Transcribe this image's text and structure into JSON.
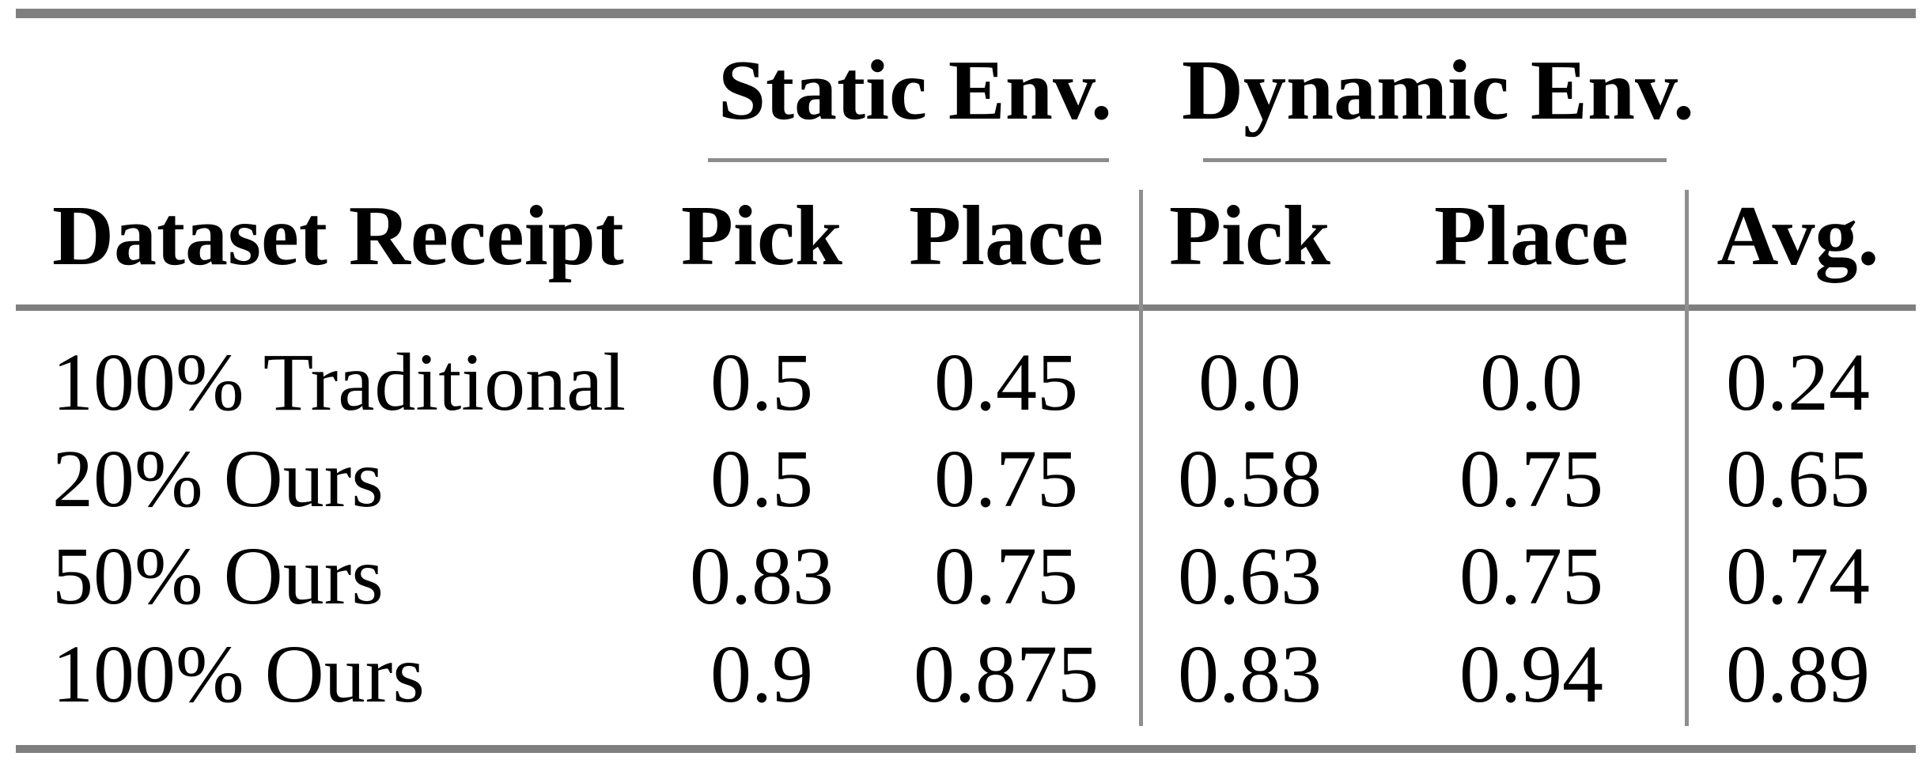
{
  "table": {
    "header": {
      "group_static": "Static Env.",
      "group_dynamic": "Dynamic Env.",
      "col_dataset": "Dataset Receipt",
      "col_pick_static": "Pick",
      "col_place_static": "Place",
      "col_pick_dynamic": "Pick",
      "col_place_dynamic": "Place",
      "col_avg": "Avg."
    },
    "rows": [
      {
        "dataset": "100% Traditional",
        "static_pick": "0.5",
        "static_place": "0.45",
        "dynamic_pick": "0.0",
        "dynamic_place": "0.0",
        "avg": "0.24"
      },
      {
        "dataset": "20% Ours",
        "static_pick": "0.5",
        "static_place": "0.75",
        "dynamic_pick": "0.58",
        "dynamic_place": "0.75",
        "avg": "0.65"
      },
      {
        "dataset": "50% Ours",
        "static_pick": "0.83",
        "static_place": "0.75",
        "dynamic_pick": "0.63",
        "dynamic_place": "0.75",
        "avg": "0.74"
      },
      {
        "dataset": "100% Ours",
        "static_pick": "0.9",
        "static_place": "0.875",
        "dynamic_pick": "0.83",
        "dynamic_place": "0.94",
        "avg": "0.89"
      }
    ],
    "colors": {
      "rule_gray": "#7f7f7f",
      "text": "#000000"
    }
  }
}
